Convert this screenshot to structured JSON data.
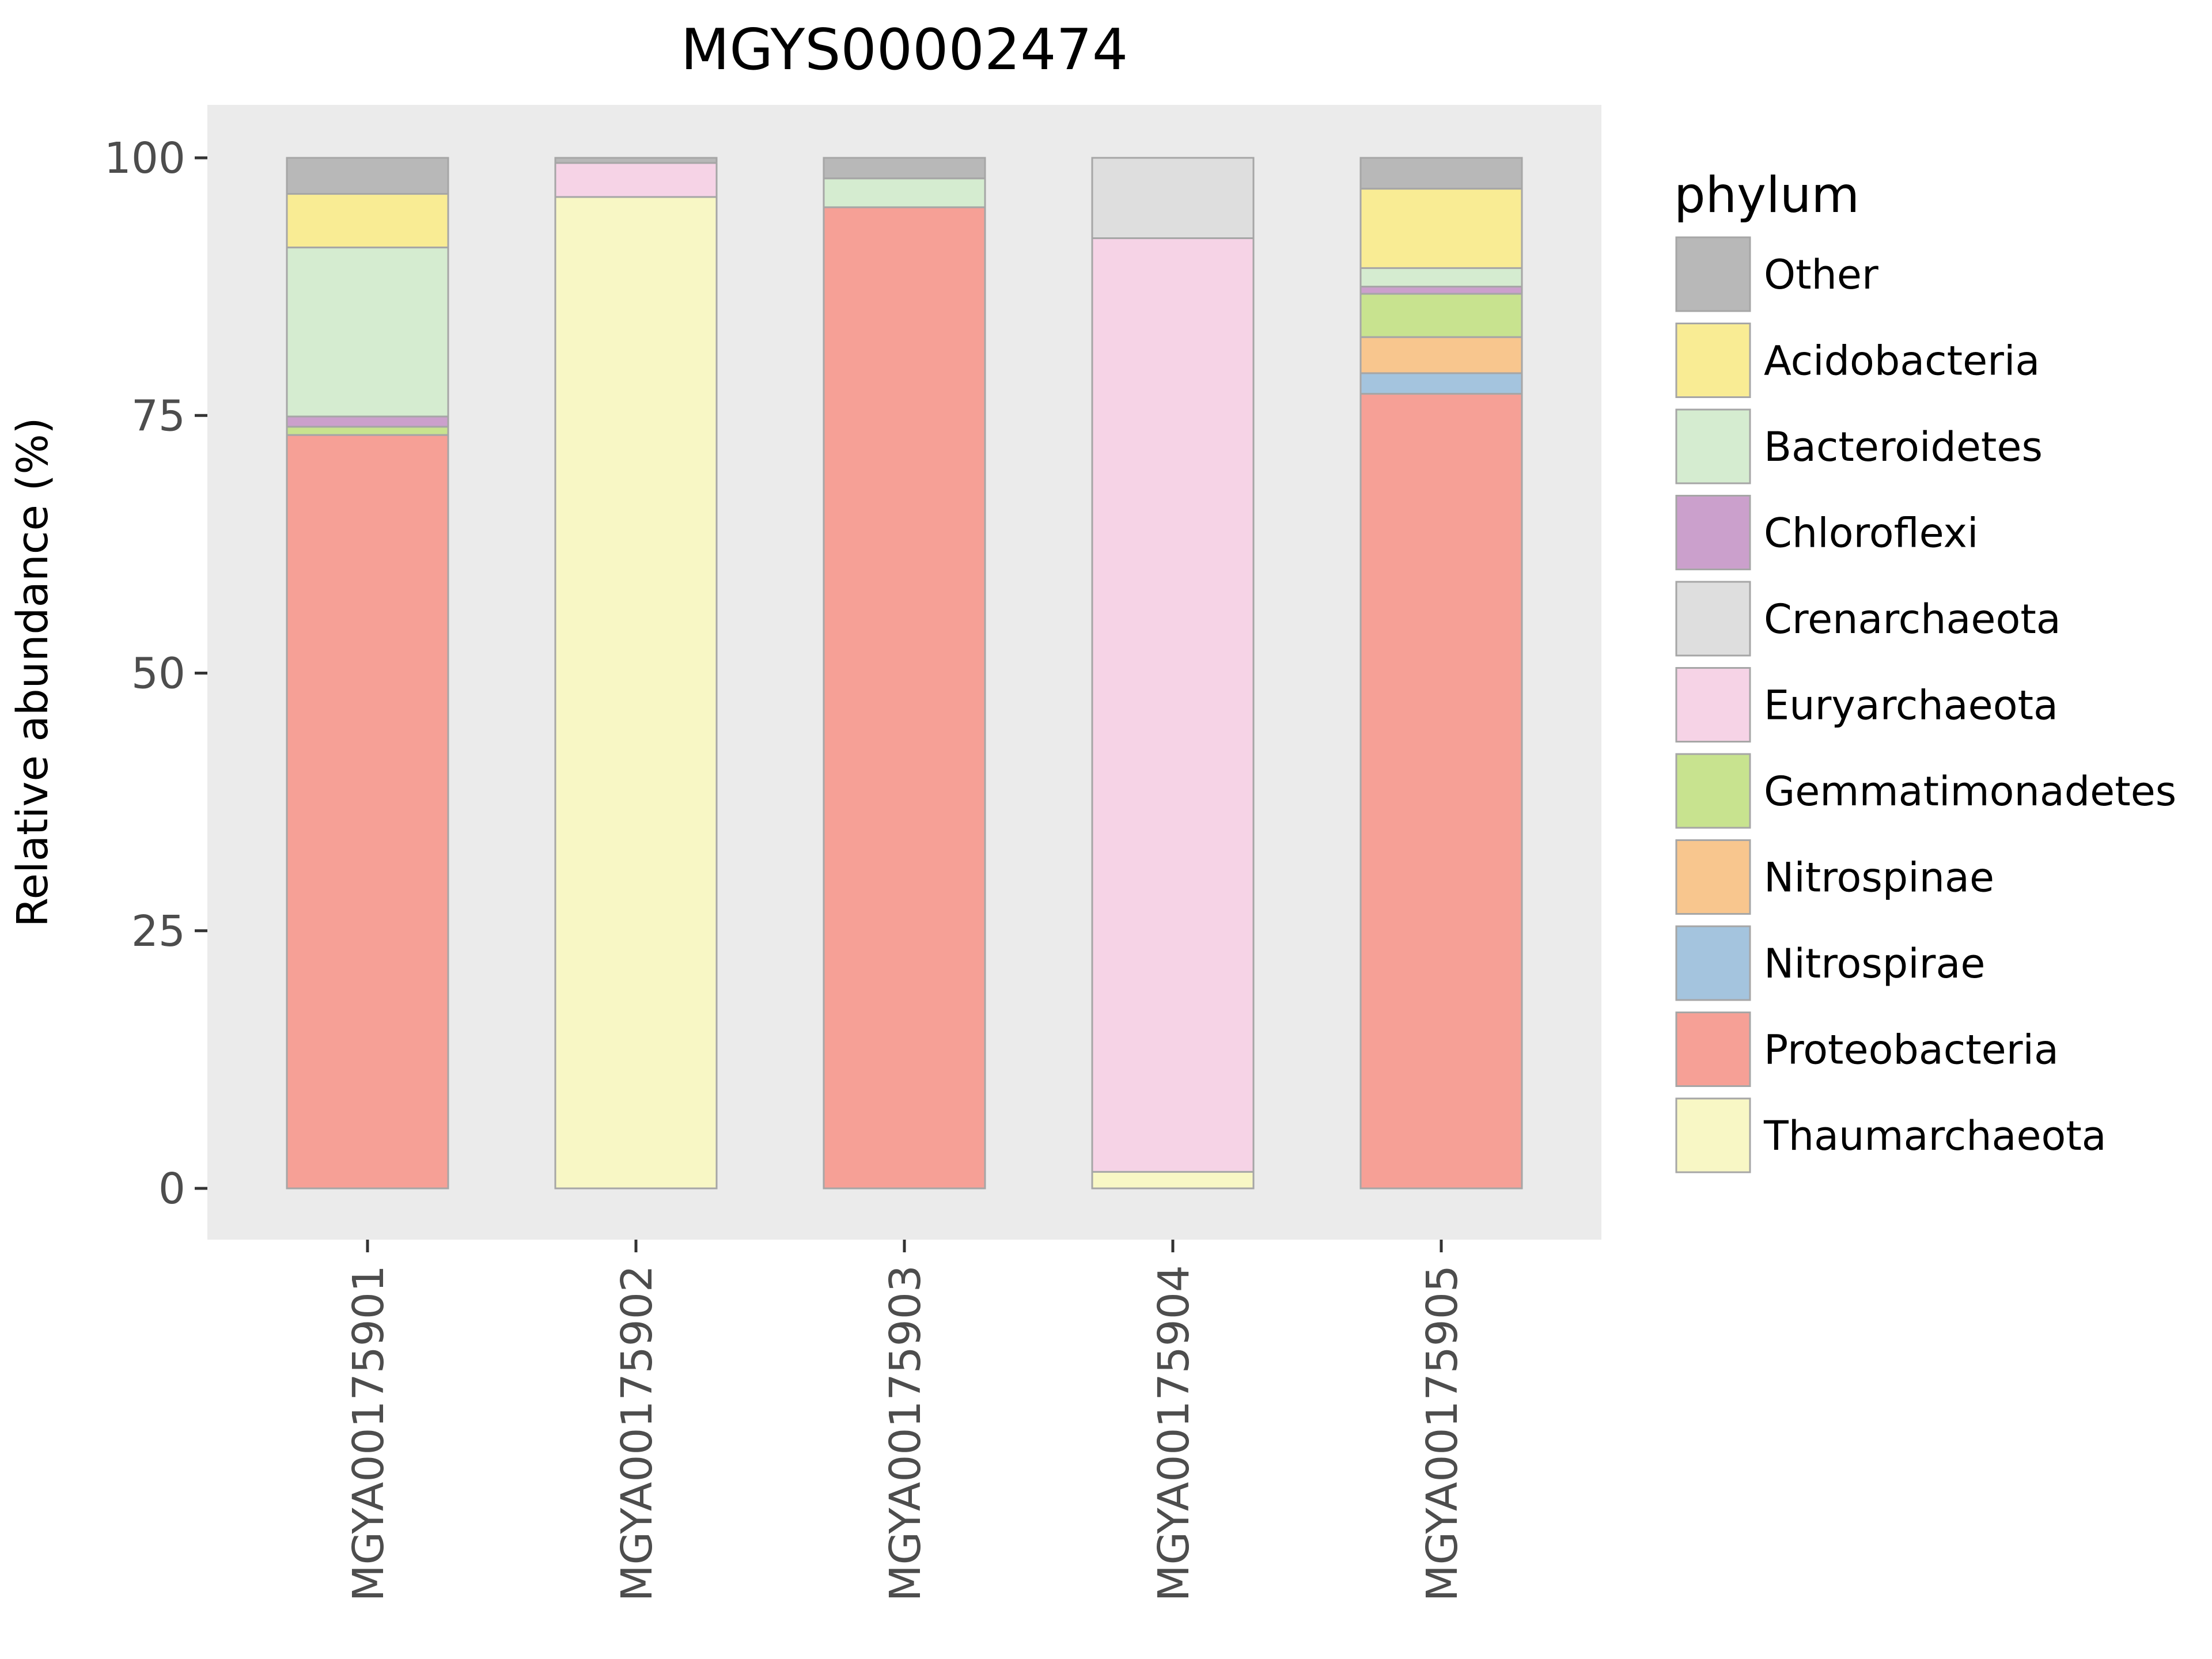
{
  "chart_data": {
    "type": "bar",
    "stacked": true,
    "title": "MGYS00002474",
    "xlabel": "",
    "ylabel": "Relative abundance (%)",
    "ylim": [
      0,
      100
    ],
    "yticks": [
      "0",
      "25",
      "50",
      "75",
      "100"
    ],
    "categories": [
      "MGYA00175901",
      "MGYA00175902",
      "MGYA00175903",
      "MGYA00175904",
      "MGYA00175905"
    ],
    "legend": {
      "title": "phylum",
      "position": "right"
    },
    "grid": false,
    "series": [
      {
        "name": "Other",
        "color": "#b8b8b8",
        "values": [
          3.5,
          0.5,
          2,
          0,
          3
        ]
      },
      {
        "name": "Acidobacteria",
        "color": "#f9ec94",
        "values": [
          5.2,
          0,
          0,
          0,
          7.7
        ]
      },
      {
        "name": "Bacteroidetes",
        "color": "#d5ecd0",
        "values": [
          16.4,
          0,
          2.8,
          0,
          1.8
        ]
      },
      {
        "name": "Chloroflexi",
        "color": "#cba0cc",
        "values": [
          1,
          0,
          0,
          0,
          0.7
        ]
      },
      {
        "name": "Crenarchaeota",
        "color": "#dedede",
        "values": [
          0,
          0,
          0,
          7.8,
          0
        ]
      },
      {
        "name": "Euryarchaeota",
        "color": "#f6d3e6",
        "values": [
          0,
          3.3,
          0,
          90.6,
          0
        ]
      },
      {
        "name": "Gemmatimonadetes",
        "color": "#c8e38f",
        "values": [
          0.8,
          0,
          0,
          0,
          4.2
        ]
      },
      {
        "name": "Nitrospinae",
        "color": "#f8c68e",
        "values": [
          0,
          0,
          0,
          0,
          3.5
        ]
      },
      {
        "name": "Nitrospirae",
        "color": "#a4c4de",
        "values": [
          0,
          0,
          0,
          0,
          2
        ]
      },
      {
        "name": "Proteobacteria",
        "color": "#f6a096",
        "values": [
          73.1,
          0,
          95.2,
          0,
          77.1
        ]
      },
      {
        "name": "Thaumarchaeota",
        "color": "#f8f7c5",
        "values": [
          0,
          96.2,
          0,
          1.6,
          0
        ]
      }
    ]
  }
}
